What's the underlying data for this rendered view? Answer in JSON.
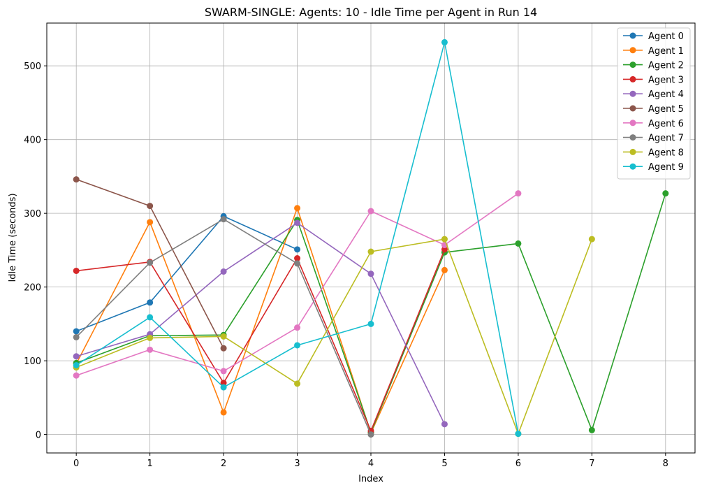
{
  "chart_data": {
    "type": "line",
    "title": "SWARM-SINGLE: Agents: 10 - Idle Time per Agent in Run 14",
    "xlabel": "Index",
    "ylabel": "Idle Time (seconds)",
    "xlim": [
      -0.4,
      8.4
    ],
    "ylim": [
      -25,
      558
    ],
    "xticks": [
      0,
      1,
      2,
      3,
      4,
      5,
      6,
      7,
      8
    ],
    "yticks": [
      0,
      100,
      200,
      300,
      400,
      500
    ],
    "grid": true,
    "legend_position": "top-right",
    "series": [
      {
        "name": "Agent 0",
        "color": "#1f77b4",
        "x": [
          0,
          1,
          2,
          3
        ],
        "values": [
          140,
          179,
          296,
          251
        ]
      },
      {
        "name": "Agent 1",
        "color": "#ff7f0e",
        "x": [
          0,
          1,
          2,
          3,
          4,
          5
        ],
        "values": [
          96,
          288,
          30,
          307,
          2,
          223
        ]
      },
      {
        "name": "Agent 2",
        "color": "#2ca02c",
        "x": [
          0,
          1,
          2,
          3,
          4,
          5,
          6,
          7,
          8
        ],
        "values": [
          97,
          134,
          135,
          291,
          3,
          247,
          259,
          6,
          327
        ]
      },
      {
        "name": "Agent 3",
        "color": "#d62728",
        "x": [
          0,
          1,
          2,
          3,
          4,
          5
        ],
        "values": [
          222,
          234,
          70,
          239,
          5,
          251
        ]
      },
      {
        "name": "Agent 4",
        "color": "#9467bd",
        "x": [
          0,
          1,
          2,
          3,
          4,
          5
        ],
        "values": [
          106,
          136,
          221,
          287,
          218,
          14
        ]
      },
      {
        "name": "Agent 5",
        "color": "#8c564b",
        "x": [
          0,
          1,
          2
        ],
        "values": [
          346,
          310,
          117
        ]
      },
      {
        "name": "Agent 6",
        "color": "#e377c2",
        "x": [
          0,
          1,
          2,
          3,
          4,
          5,
          6
        ],
        "values": [
          80,
          115,
          86,
          145,
          303,
          257,
          327
        ]
      },
      {
        "name": "Agent 7",
        "color": "#7f7f7f",
        "x": [
          0,
          1,
          2,
          3,
          4
        ],
        "values": [
          132,
          233,
          292,
          232,
          0
        ]
      },
      {
        "name": "Agent 8",
        "color": "#bcbd22",
        "x": [
          0,
          1,
          2,
          3,
          4,
          5,
          6,
          7
        ],
        "values": [
          91,
          131,
          133,
          69,
          248,
          265,
          1,
          265
        ]
      },
      {
        "name": "Agent 9",
        "color": "#17becf",
        "x": [
          0,
          1,
          2,
          3,
          4,
          5,
          6
        ],
        "values": [
          94,
          159,
          64,
          121,
          150,
          532,
          1
        ]
      }
    ]
  }
}
